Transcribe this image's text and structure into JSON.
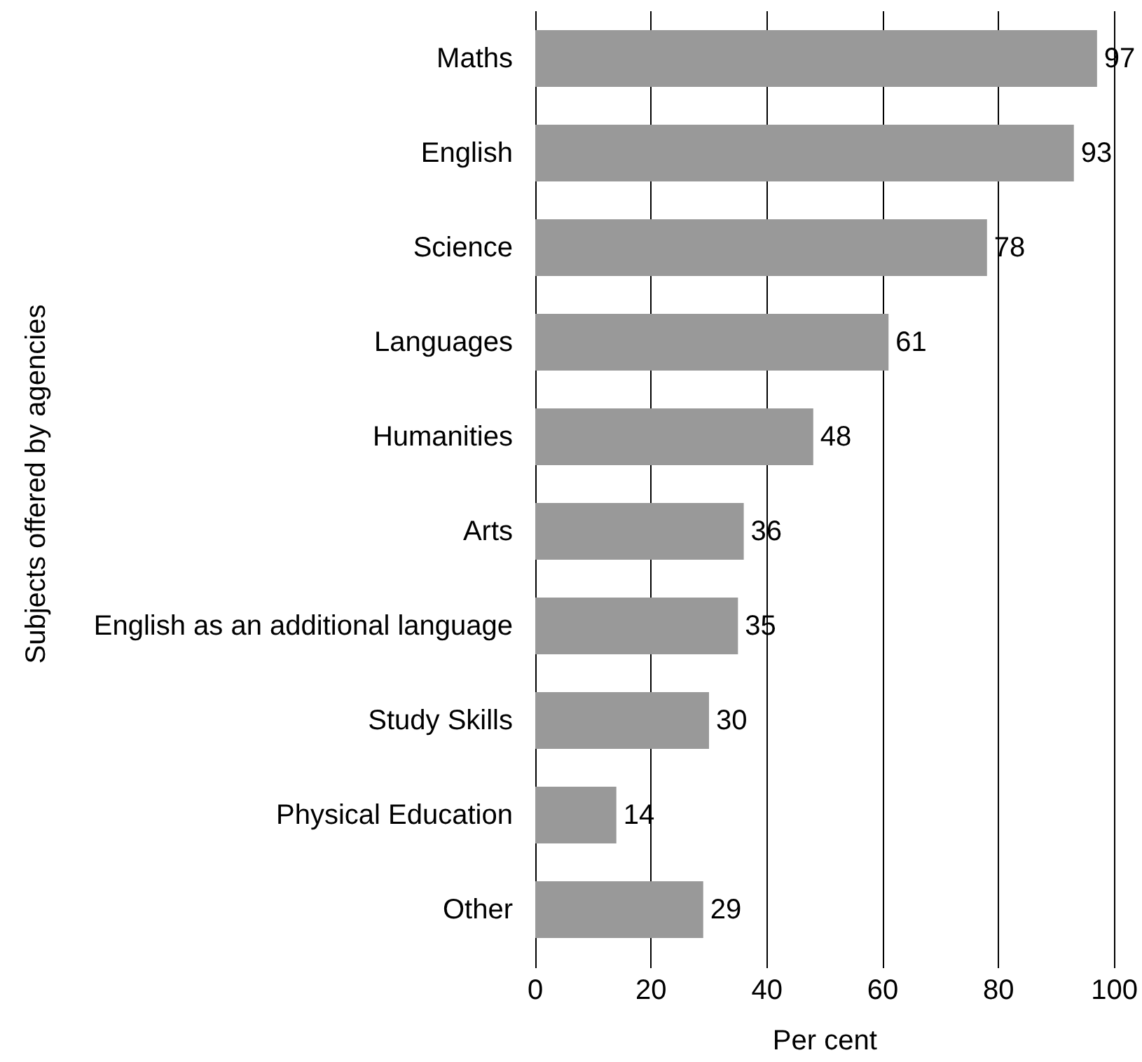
{
  "chart_data": {
    "type": "bar",
    "orientation": "horizontal",
    "xlabel": "Per cent",
    "ylabel": "Subjects offered by agencies",
    "categories": [
      "Maths",
      "English",
      "Science",
      "Languages",
      "Humanities",
      "Arts",
      "English as an additional language",
      "Study Skills",
      "Physical Education",
      "Other"
    ],
    "values": [
      97,
      93,
      78,
      61,
      48,
      36,
      35,
      30,
      14,
      29
    ],
    "color": "#999999",
    "xlim": [
      0,
      100
    ],
    "xticks": [
      0,
      20,
      40,
      60,
      80,
      100
    ],
    "grid": "x",
    "data_labels": true
  }
}
